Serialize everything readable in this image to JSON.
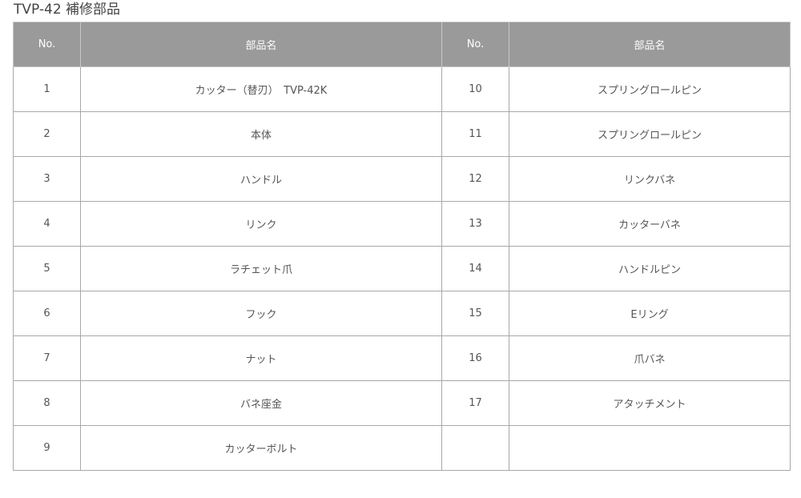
{
  "title": "TVP-42 補修部品",
  "headers": [
    "No.",
    "部品名",
    "No.",
    "部品名"
  ],
  "rows": [
    [
      "1",
      "カッター（替刃）　TVP-42K",
      "10",
      "スプリングロールピン"
    ],
    [
      "2",
      "本体",
      "11",
      "スプリングロールピン"
    ],
    [
      "3",
      "ハンドル",
      "12",
      "リンクバネ"
    ],
    [
      "4",
      "リンク",
      "13",
      "カッターバネ"
    ],
    [
      "5",
      "ラチェット爪",
      "14",
      "ハンドルピン"
    ],
    [
      "6",
      "フック",
      "15",
      "Eリング"
    ],
    [
      "7",
      "ナット",
      "16",
      "爪バネ"
    ],
    [
      "8",
      "バネ座金",
      "17",
      "アタッチメント"
    ],
    [
      "9",
      "カッターボルト",
      "",
      ""
    ]
  ]
}
